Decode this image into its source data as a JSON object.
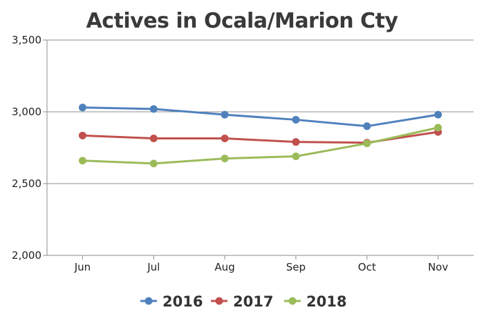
{
  "chart_data": {
    "type": "line",
    "title": "Actives in Ocala/Marion Cty",
    "xlabel": "",
    "ylabel": "",
    "categories": [
      "Jun",
      "Jul",
      "Aug",
      "Sep",
      "Oct",
      "Nov"
    ],
    "ylim": [
      2000,
      3500
    ],
    "yticks": [
      2000,
      2500,
      3000,
      3500
    ],
    "ytick_labels": [
      "2,000",
      "2,500",
      "3,000",
      "3,500"
    ],
    "grid": true,
    "legend_position": "bottom",
    "series": [
      {
        "name": "2016",
        "color": "#4f81bd",
        "values": [
          3030,
          3020,
          2980,
          2945,
          2900,
          2980
        ]
      },
      {
        "name": "2017",
        "color": "#c0504d",
        "values": [
          2835,
          2815,
          2815,
          2790,
          2785,
          2860
        ]
      },
      {
        "name": "2018",
        "color": "#9bbb59",
        "values": [
          2660,
          2640,
          2675,
          2690,
          2780,
          2890
        ]
      }
    ]
  }
}
